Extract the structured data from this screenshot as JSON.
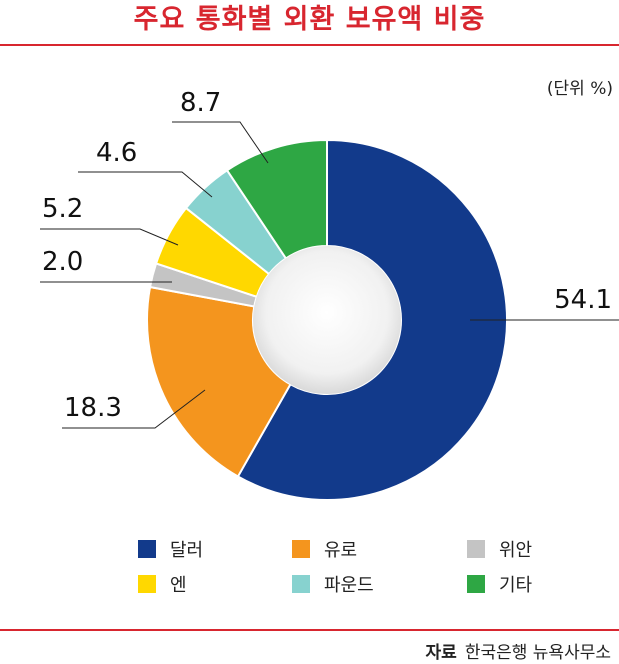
{
  "title": "주요 통화별 외환 보유액 비중",
  "unit_label": "(단위 %)",
  "source": {
    "label": "자료",
    "text": "한국은행 뉴욕사무소"
  },
  "chart_data": {
    "type": "donut",
    "title": "주요 통화별 외환 보유액 비중",
    "categories": [
      "달러",
      "유로",
      "위안",
      "엔",
      "파운드",
      "기타"
    ],
    "values": [
      54.1,
      18.3,
      2.0,
      5.2,
      4.6,
      8.7
    ],
    "value_labels": [
      "54.1",
      "18.3",
      "2.0",
      "5.2",
      "4.6",
      "8.7"
    ],
    "colors": [
      "#123a8b",
      "#f4951e",
      "#c4c4c4",
      "#ffd800",
      "#87d2cf",
      "#2ea744"
    ],
    "start": "12 o'clock",
    "direction": "clockwise",
    "legend_position": "bottom"
  },
  "legend": [
    {
      "label": "달러",
      "color": "#123a8b"
    },
    {
      "label": "유로",
      "color": "#f4951e"
    },
    {
      "label": "위안",
      "color": "#c4c4c4"
    },
    {
      "label": "엔",
      "color": "#ffd800"
    },
    {
      "label": "파운드",
      "color": "#87d2cf"
    },
    {
      "label": "기타",
      "color": "#2ea744"
    }
  ]
}
